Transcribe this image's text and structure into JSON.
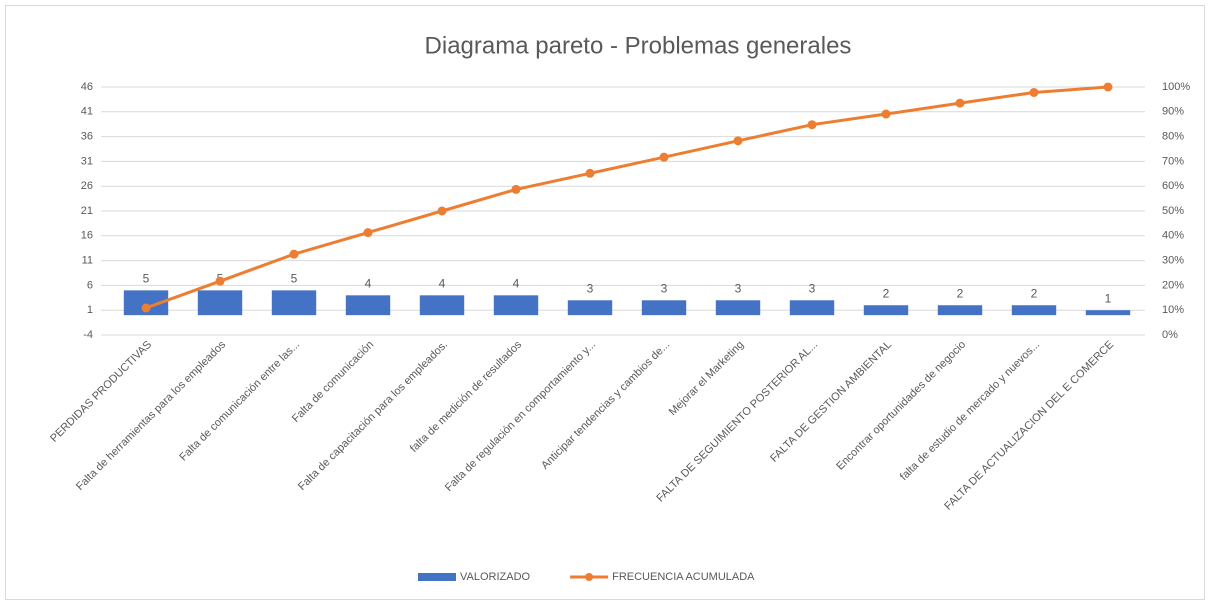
{
  "chart_data": {
    "type": "combo",
    "title": "Diagrama pareto - Problemas generales",
    "categories": [
      "PERDIDAS PRODUCTIVAS",
      "Falta de herramientas para los empleados",
      "Falta de comunicación entre las...",
      "Falta de comunicación",
      "Falta de capacitación para los empleados.",
      "falta de medición de resultados",
      "Falta de regulación en comportamiento y...",
      "Anticipar tendencias y cambios de...",
      "Mejorar el Marketing",
      "FALTA DE SEGUIMIENTO POSTERIOR AL...",
      "FALTA DE GESTION AMBIENTAL",
      "Encontrar oportunidades de negocio",
      "falta de estudio de mercado y nuevos...",
      "FALTA DE ACTUALIZACION DEL E COMERCE"
    ],
    "series": [
      {
        "name": "VALORIZADO",
        "type": "bar",
        "color": "#4472c4",
        "axis": "y",
        "values": [
          5,
          5,
          5,
          4,
          4,
          4,
          3,
          3,
          3,
          3,
          2,
          2,
          2,
          1
        ]
      },
      {
        "name": "FRECUENCIA ACUMULADA",
        "type": "line",
        "color": "#ed7d31",
        "axis": "y2",
        "values": [
          10.9,
          21.7,
          32.6,
          41.3,
          50,
          58.7,
          65.2,
          71.7,
          78.3,
          84.8,
          89.1,
          93.5,
          97.8,
          100
        ]
      }
    ],
    "ylim": [
      -4,
      46
    ],
    "yticks": [
      -4,
      1,
      6,
      11,
      16,
      21,
      26,
      31,
      36,
      41,
      46
    ],
    "y2lim": [
      0,
      100
    ],
    "y2ticks": [
      {
        "value": 0,
        "label": "0%"
      },
      {
        "value": 10,
        "label": "10%"
      },
      {
        "value": 20,
        "label": "20%"
      },
      {
        "value": 30,
        "label": "30%"
      },
      {
        "value": 40,
        "label": "40%"
      },
      {
        "value": 50,
        "label": "50%"
      },
      {
        "value": 60,
        "label": "60%"
      },
      {
        "value": 70,
        "label": "70%"
      },
      {
        "value": 80,
        "label": "80%"
      },
      {
        "value": 90,
        "label": "90%"
      },
      {
        "value": 100,
        "label": "100%"
      }
    ],
    "grid": true,
    "legend": "bottom"
  }
}
